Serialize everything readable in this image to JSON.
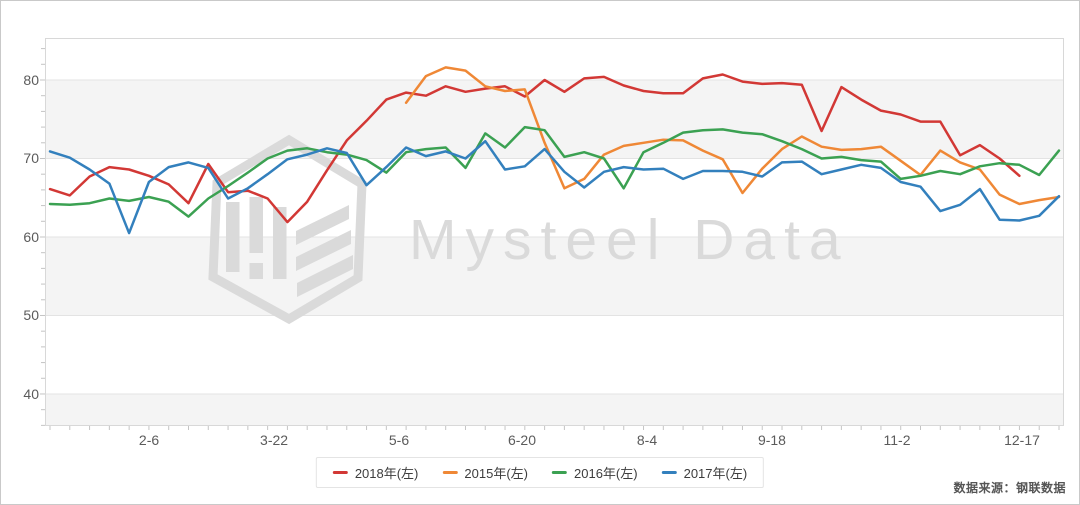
{
  "source_note": "数据来源：钢联数据",
  "watermark": {
    "text": "Mysteel Data"
  },
  "colors": {
    "band": "#f4f4f4",
    "grid": "#e3e3e3",
    "plot_border": "#d8d8d8",
    "tick": "#c4c4c4",
    "axis_text": "#5b5b5b",
    "watermark": "#dadada",
    "legend_border": "#e4e4e4"
  },
  "chart_data": {
    "type": "line",
    "title": "",
    "xlabel": "",
    "ylabel": "",
    "legend_position": "bottom",
    "grid": true,
    "y_axis": {
      "tick_labels": [
        "80",
        "70",
        "60",
        "50",
        "40"
      ],
      "ticks": [
        80,
        70,
        60,
        50,
        40
      ],
      "min": 35.92,
      "max": 85.35,
      "minor_step": 2
    },
    "bands": [
      [
        80,
        70
      ],
      [
        60,
        50
      ],
      [
        40,
        35.92
      ]
    ],
    "x_axis": {
      "tick_labels": [
        {
          "label": "2-6",
          "pos": 0.1021
        },
        {
          "label": "3-22",
          "pos": 0.2248
        },
        {
          "label": "5-6",
          "pos": 0.3474
        },
        {
          "label": "6-20",
          "pos": 0.4681
        },
        {
          "label": "8-4",
          "pos": 0.5908
        },
        {
          "label": "9-18",
          "pos": 0.7134
        },
        {
          "label": "11-2",
          "pos": 0.8361
        },
        {
          "label": "12-17",
          "pos": 0.9588
        }
      ],
      "point_count": 52
    },
    "series": [
      {
        "name": "2018年(左)",
        "color": "#d23835",
        "values": [
          66.1,
          65.3,
          67.7,
          68.9,
          68.6,
          67.8,
          66.7,
          64.3,
          69.3,
          65.7,
          65.9,
          64.9,
          61.9,
          64.5,
          68.5,
          72.3,
          74.8,
          77.5,
          78.4,
          78.0,
          79.2,
          78.5,
          78.9,
          79.2,
          77.9,
          80.0,
          78.5,
          80.2,
          80.4,
          79.3,
          78.6,
          78.3,
          78.3,
          80.2,
          80.7,
          79.8,
          79.5,
          79.6,
          79.4,
          73.5,
          79.1,
          77.5,
          76.1,
          75.6,
          74.7,
          74.7,
          70.4,
          71.7,
          70.0,
          67.8,
          null,
          null
        ]
      },
      {
        "name": "2015年(左)",
        "color": "#ef8836",
        "values": [
          null,
          null,
          null,
          null,
          null,
          null,
          null,
          null,
          null,
          null,
          null,
          null,
          null,
          null,
          null,
          null,
          null,
          null,
          77.1,
          80.5,
          81.6,
          81.2,
          79.2,
          78.6,
          78.8,
          72.0,
          66.2,
          67.4,
          70.5,
          71.6,
          72.0,
          72.4,
          72.3,
          71.0,
          69.9,
          65.6,
          68.7,
          71.2,
          72.8,
          71.5,
          71.1,
          71.2,
          71.5,
          69.7,
          67.9,
          71.0,
          69.5,
          68.6,
          65.4,
          64.2,
          64.7,
          65.1
        ]
      },
      {
        "name": "2016年(左)",
        "color": "#3ba152",
        "values": [
          64.2,
          64.1,
          64.3,
          64.9,
          64.6,
          65.1,
          64.5,
          62.6,
          64.9,
          66.5,
          68.2,
          70.0,
          71.0,
          71.3,
          70.8,
          70.5,
          69.8,
          68.2,
          70.8,
          71.2,
          71.4,
          68.8,
          73.2,
          71.4,
          74.0,
          73.6,
          70.2,
          70.8,
          70.0,
          66.2,
          70.8,
          72.0,
          73.3,
          73.6,
          73.7,
          73.3,
          73.1,
          72.2,
          71.2,
          70.0,
          70.2,
          69.8,
          69.6,
          67.4,
          67.8,
          68.4,
          68.0,
          69.0,
          69.4,
          69.2,
          67.9,
          71.0
        ]
      },
      {
        "name": "2017年(左)",
        "color": "#3380bd",
        "values": [
          70.9,
          70.1,
          68.6,
          66.8,
          60.5,
          67.0,
          68.9,
          69.5,
          68.8,
          64.9,
          66.2,
          68.0,
          69.9,
          70.5,
          71.3,
          70.7,
          66.6,
          68.9,
          71.4,
          70.3,
          70.9,
          70.0,
          72.2,
          68.6,
          69.0,
          71.2,
          68.3,
          66.3,
          68.3,
          68.9,
          68.6,
          68.7,
          67.4,
          68.4,
          68.4,
          68.3,
          67.7,
          69.5,
          69.6,
          68.0,
          68.6,
          69.2,
          68.8,
          67.0,
          66.4,
          63.3,
          64.1,
          66.1,
          62.2,
          62.1,
          62.7,
          65.2
        ]
      }
    ]
  }
}
